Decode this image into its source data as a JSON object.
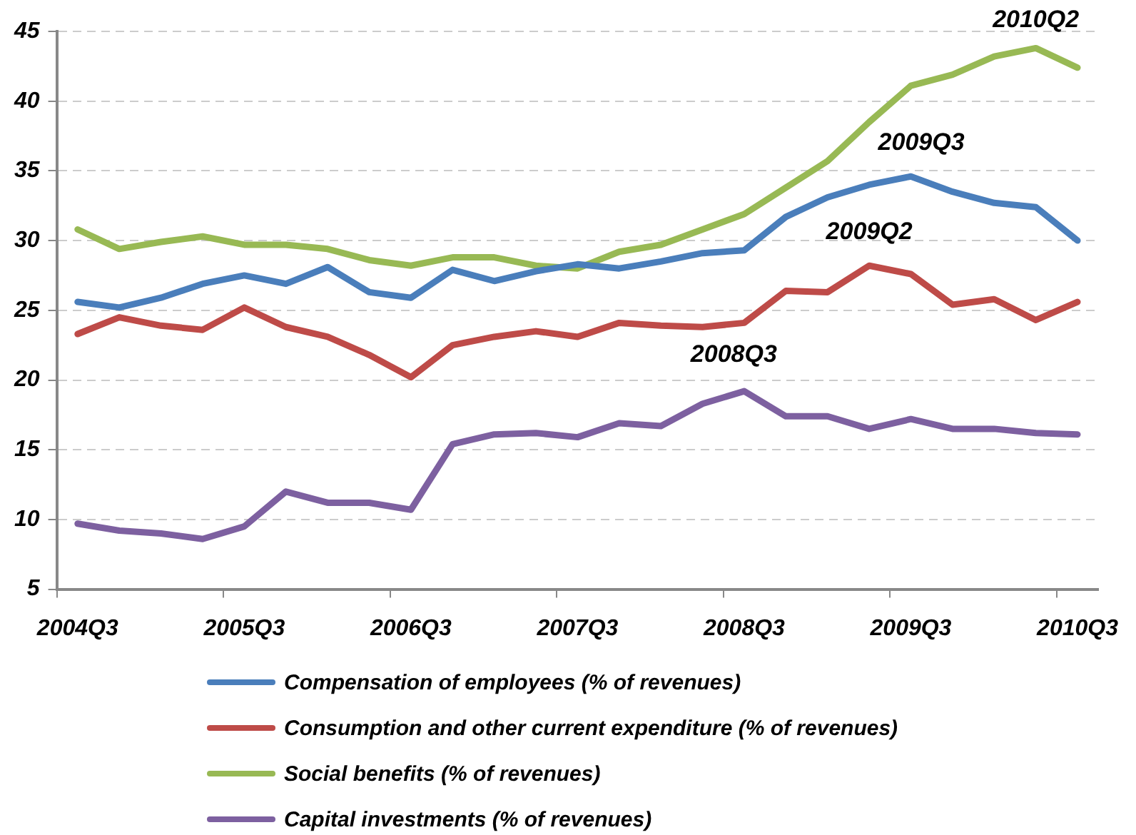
{
  "chart_data": {
    "type": "line",
    "categories": [
      "2004Q3",
      null,
      null,
      null,
      "2005Q3",
      null,
      null,
      null,
      "2006Q3",
      null,
      null,
      null,
      "2007Q3",
      null,
      null,
      null,
      "2008Q3",
      null,
      null,
      null,
      "2009Q3",
      null,
      null,
      null,
      "2010Q3"
    ],
    "series": [
      {
        "name": "Compensation of employees (% of revenues)",
        "color": "#4a7ebb",
        "values": [
          25.6,
          25.2,
          25.9,
          26.9,
          27.5,
          26.9,
          28.1,
          26.3,
          25.9,
          27.9,
          27.1,
          27.8,
          28.3,
          28.0,
          28.5,
          29.1,
          29.3,
          31.7,
          33.1,
          34.0,
          34.6,
          33.5,
          32.7,
          32.4,
          30.0
        ]
      },
      {
        "name": "Consumption and other current expenditure (% of revenues)",
        "color": "#be4b48",
        "values": [
          23.3,
          24.5,
          23.9,
          23.6,
          25.2,
          23.8,
          23.1,
          21.8,
          20.2,
          22.5,
          23.1,
          23.5,
          23.1,
          24.1,
          23.9,
          23.8,
          24.1,
          26.4,
          26.3,
          28.2,
          27.6,
          25.4,
          25.8,
          24.3,
          25.6
        ]
      },
      {
        "name": "Social benefits (% of revenues)",
        "color": "#98b954",
        "values": [
          30.8,
          29.4,
          29.9,
          30.3,
          29.7,
          29.7,
          29.4,
          28.6,
          28.2,
          28.8,
          28.8,
          28.2,
          28.0,
          29.2,
          29.7,
          30.8,
          31.9,
          33.8,
          35.7,
          38.5,
          41.1,
          41.9,
          43.2,
          43.8,
          42.4
        ]
      },
      {
        "name": "Capital investments (% of revenues)",
        "color": "#7d60a0",
        "values": [
          9.7,
          9.2,
          9.0,
          8.6,
          9.5,
          12.0,
          11.2,
          11.2,
          10.7,
          15.4,
          16.1,
          16.2,
          15.9,
          16.9,
          16.7,
          18.3,
          19.2,
          17.4,
          17.4,
          16.5,
          17.2,
          16.5,
          16.5,
          16.2,
          16.1
        ]
      }
    ],
    "ylim": [
      5,
      45
    ],
    "yticks": [
      5,
      10,
      15,
      20,
      25,
      30,
      35,
      40,
      45
    ],
    "grid": "y",
    "legend": "bottom",
    "marker": "none",
    "line_style": "solid",
    "annotations": [
      "2010Q2",
      "2009Q3",
      "2009Q2",
      "2008Q3"
    ]
  }
}
